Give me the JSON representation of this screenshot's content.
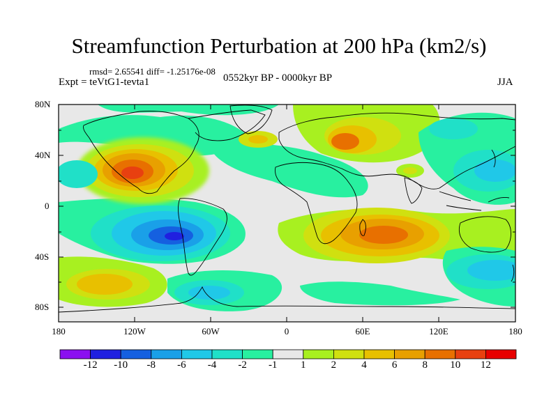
{
  "header": {
    "title": "Streamfunction Perturbation at 200 hPa (km2/s)",
    "stats": "rmsd= 2.65541 diff= -1.25176e-08",
    "experiment": "Expt = teVtG1-tevta1",
    "period": "0552kyr BP - 0000kyr BP",
    "season": "JJA"
  },
  "axes": {
    "lat_labels": [
      "80N",
      "40N",
      "0",
      "40S",
      "80S"
    ],
    "lon_labels": [
      "180",
      "120W",
      "60W",
      "0",
      "60E",
      "120E",
      "180"
    ]
  },
  "colorbar": {
    "labels": [
      "-12",
      "-10",
      "-8",
      "-6",
      "-4",
      "-2",
      "-1",
      "1",
      "2",
      "4",
      "6",
      "8",
      "10",
      "12"
    ],
    "colors": [
      "#8b10f0",
      "#2020e0",
      "#1560e0",
      "#1aa0e8",
      "#20c8e8",
      "#20e0c8",
      "#28f0a0",
      "#e8e8e8",
      "#a8f020",
      "#d0e010",
      "#e8c000",
      "#e8a000",
      "#e87000",
      "#e84010",
      "#e80000"
    ]
  },
  "map_fields": {
    "positive_centers": [
      "North America",
      "Central Asia",
      "Southern Indian Ocean",
      "South Pacific"
    ],
    "negative_centers": [
      "Southeast Pacific",
      "Western Pacific",
      "Southwest Pacific"
    ]
  }
}
